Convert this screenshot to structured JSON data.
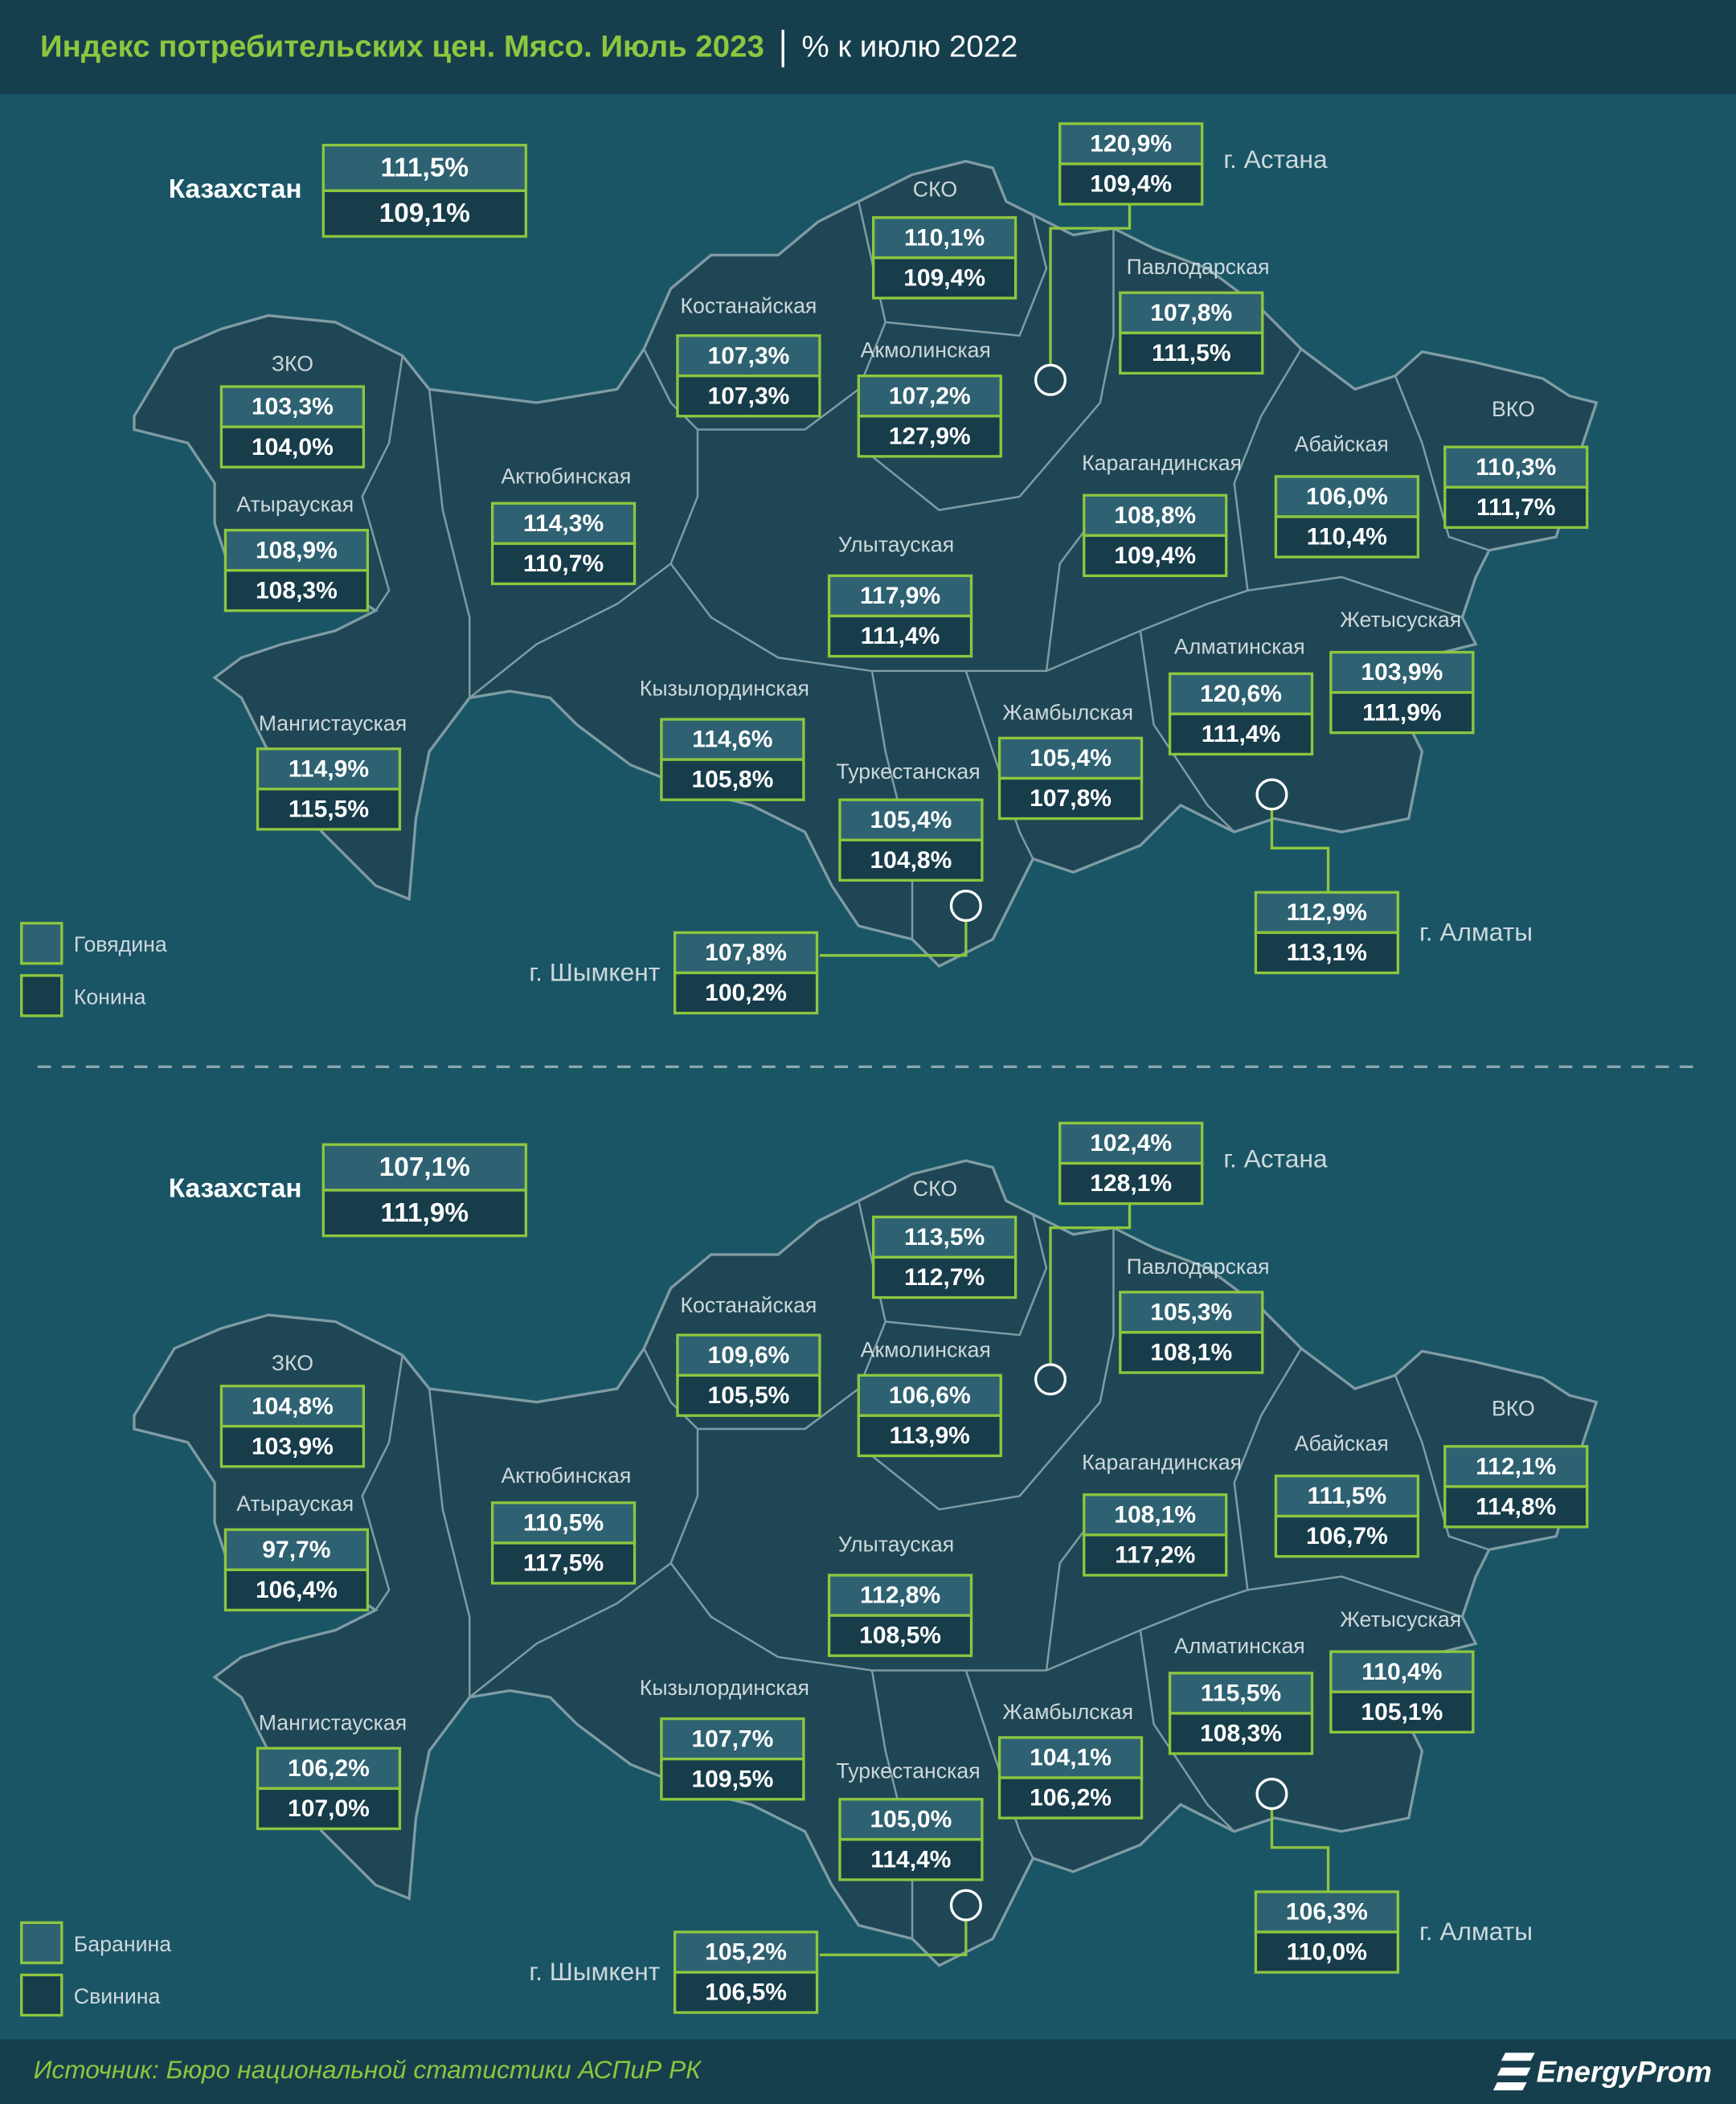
{
  "header": {
    "title": "Индекс потребительских цен. Мясо. Июль 2023",
    "subtitle": "% к июлю 2022"
  },
  "panels": [
    {
      "legend": [
        "Говядина",
        "Конина"
      ],
      "regions": [
        {
          "name": "Казахстан",
          "values": [
            "111,5%",
            "109,1%"
          ]
        },
        {
          "name": "г. Астана",
          "values": [
            "120,9%",
            "109,4%"
          ]
        },
        {
          "name": "СКО",
          "values": [
            "110,1%",
            "109,4%"
          ]
        },
        {
          "name": "Павлодарская",
          "values": [
            "107,8%",
            "111,5%"
          ]
        },
        {
          "name": "Костанайская",
          "values": [
            "107,3%",
            "107,3%"
          ]
        },
        {
          "name": "Акмолинская",
          "values": [
            "107,2%",
            "127,9%"
          ]
        },
        {
          "name": "ЗКО",
          "values": [
            "103,3%",
            "104,0%"
          ]
        },
        {
          "name": "Атырауская",
          "values": [
            "108,9%",
            "108,3%"
          ]
        },
        {
          "name": "Актюбинская",
          "values": [
            "114,3%",
            "110,7%"
          ]
        },
        {
          "name": "Карагандинская",
          "values": [
            "108,8%",
            "109,4%"
          ]
        },
        {
          "name": "Абайская",
          "values": [
            "106,0%",
            "110,4%"
          ]
        },
        {
          "name": "ВКО",
          "values": [
            "110,3%",
            "111,7%"
          ]
        },
        {
          "name": "Улытауская",
          "values": [
            "117,9%",
            "111,4%"
          ]
        },
        {
          "name": "Жетысуская",
          "values": [
            "103,9%",
            "111,9%"
          ]
        },
        {
          "name": "Алматинская",
          "values": [
            "120,6%",
            "111,4%"
          ]
        },
        {
          "name": "Кызылординская",
          "values": [
            "114,6%",
            "105,8%"
          ]
        },
        {
          "name": "Жамбылская",
          "values": [
            "105,4%",
            "107,8%"
          ]
        },
        {
          "name": "Мангистауская",
          "values": [
            "114,9%",
            "115,5%"
          ]
        },
        {
          "name": "Туркестанская",
          "values": [
            "105,4%",
            "104,8%"
          ]
        },
        {
          "name": "г. Алматы",
          "values": [
            "112,9%",
            "113,1%"
          ]
        },
        {
          "name": "г. Шымкент",
          "values": [
            "107,8%",
            "100,2%"
          ]
        }
      ]
    },
    {
      "legend": [
        "Баранина",
        "Свинина"
      ],
      "regions": [
        {
          "name": "Казахстан",
          "values": [
            "107,1%",
            "111,9%"
          ]
        },
        {
          "name": "г. Астана",
          "values": [
            "102,4%",
            "128,1%"
          ]
        },
        {
          "name": "СКО",
          "values": [
            "113,5%",
            "112,7%"
          ]
        },
        {
          "name": "Павлодарская",
          "values": [
            "105,3%",
            "108,1%"
          ]
        },
        {
          "name": "Костанайская",
          "values": [
            "109,6%",
            "105,5%"
          ]
        },
        {
          "name": "Акмолинская",
          "values": [
            "106,6%",
            "113,9%"
          ]
        },
        {
          "name": "ЗКО",
          "values": [
            "104,8%",
            "103,9%"
          ]
        },
        {
          "name": "Атырауская",
          "values": [
            "97,7%",
            "106,4%"
          ]
        },
        {
          "name": "Актюбинская",
          "values": [
            "110,5%",
            "117,5%"
          ]
        },
        {
          "name": "Карагандинская",
          "values": [
            "108,1%",
            "117,2%"
          ]
        },
        {
          "name": "Абайская",
          "values": [
            "111,5%",
            "106,7%"
          ]
        },
        {
          "name": "ВКО",
          "values": [
            "112,1%",
            "114,8%"
          ]
        },
        {
          "name": "Улытауская",
          "values": [
            "112,8%",
            "108,5%"
          ]
        },
        {
          "name": "Жетысуская",
          "values": [
            "110,4%",
            "105,1%"
          ]
        },
        {
          "name": "Алматинская",
          "values": [
            "115,5%",
            "108,3%"
          ]
        },
        {
          "name": "Кызылординская",
          "values": [
            "107,7%",
            "109,5%"
          ]
        },
        {
          "name": "Жамбылская",
          "values": [
            "104,1%",
            "106,2%"
          ]
        },
        {
          "name": "Мангистауская",
          "values": [
            "106,2%",
            "107,0%"
          ]
        },
        {
          "name": "Туркестанская",
          "values": [
            "105,0%",
            "114,4%"
          ]
        },
        {
          "name": "г. Алматы",
          "values": [
            "106,3%",
            "110,0%"
          ]
        },
        {
          "name": "г. Шымкент",
          "values": [
            "105,2%",
            "106,5%"
          ]
        }
      ]
    }
  ],
  "footer": {
    "source": "Источник: Бюро национальной статистики АСПиР РК",
    "brand": "EnergyProm"
  }
}
